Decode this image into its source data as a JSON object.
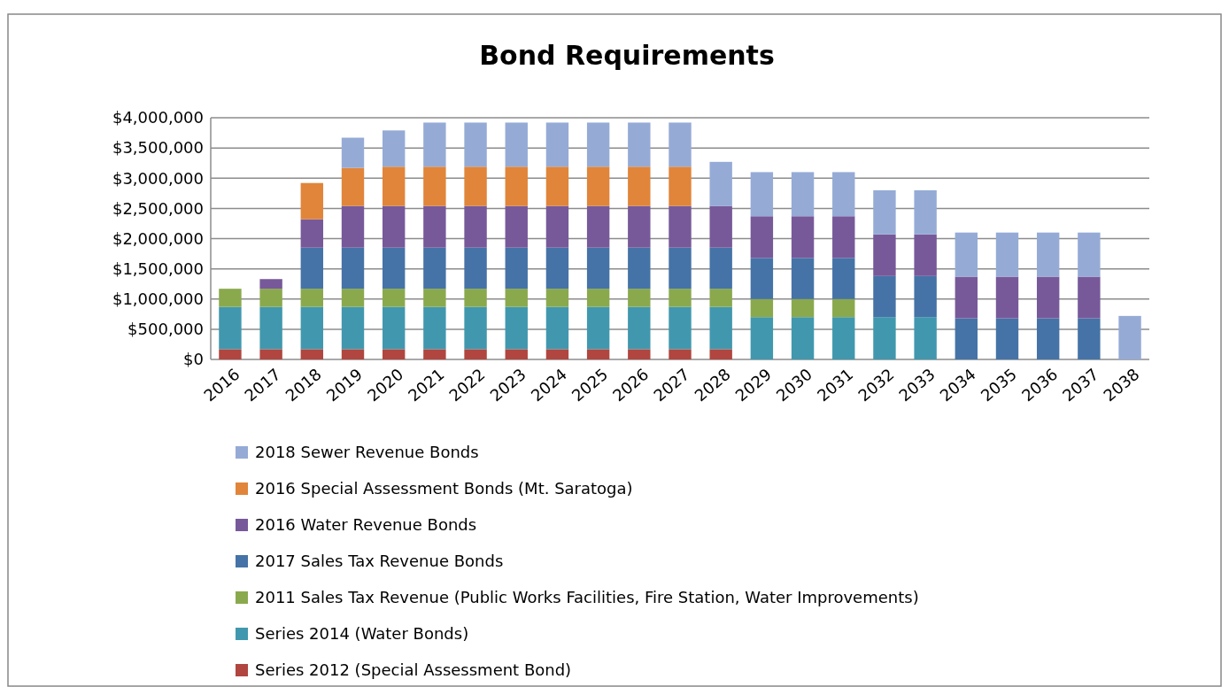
{
  "chart_data": {
    "type": "bar",
    "title": "Bond Requirements",
    "stacked": true,
    "grid": "y",
    "legend": "bottom",
    "categories": [
      "2016",
      "2017",
      "2018",
      "2019",
      "2020",
      "2021",
      "2022",
      "2023",
      "2024",
      "2025",
      "2026",
      "2027",
      "2028",
      "2029",
      "2030",
      "2031",
      "2032",
      "2033",
      "2034",
      "2035",
      "2036",
      "2037",
      "2038"
    ],
    "ylim": [
      0,
      4000000
    ],
    "yticks": [
      {
        "value": 0,
        "label": "$0"
      },
      {
        "value": 500000,
        "label": "$500,000"
      },
      {
        "value": 1000000,
        "label": "$1,000,000"
      },
      {
        "value": 1500000,
        "label": "$1,500,000"
      },
      {
        "value": 2000000,
        "label": "$2,000,000"
      },
      {
        "value": 2500000,
        "label": "$2,500,000"
      },
      {
        "value": 3000000,
        "label": "$3,000,000"
      },
      {
        "value": 3500000,
        "label": "$3,500,000"
      },
      {
        "value": 4000000,
        "label": "$4,000,000"
      }
    ],
    "series": [
      {
        "name": "Series 2012 (Special Assessment Bond)",
        "color": "#b0463f",
        "values": [
          170000,
          170000,
          170000,
          170000,
          170000,
          170000,
          170000,
          170000,
          170000,
          170000,
          170000,
          170000,
          170000,
          null,
          null,
          null,
          null,
          null,
          null,
          null,
          null,
          null,
          null
        ]
      },
      {
        "name": "Series 2014 (Water Bonds)",
        "color": "#4198ae",
        "values": [
          700000,
          700000,
          700000,
          700000,
          700000,
          700000,
          700000,
          700000,
          700000,
          700000,
          700000,
          700000,
          700000,
          700000,
          700000,
          700000,
          700000,
          700000,
          null,
          null,
          null,
          null,
          null
        ]
      },
      {
        "name": "2011 Sales Tax Revenue (Public Works Facilities, Fire Station, Water Improvements)",
        "color": "#8aa94d",
        "values": [
          300000,
          300000,
          300000,
          300000,
          300000,
          300000,
          300000,
          300000,
          300000,
          300000,
          300000,
          300000,
          300000,
          300000,
          300000,
          300000,
          null,
          null,
          null,
          null,
          null,
          null,
          null
        ]
      },
      {
        "name": "2017 Sales Tax Revenue Bonds",
        "color": "#4573a7",
        "values": [
          null,
          null,
          680000,
          680000,
          680000,
          680000,
          680000,
          680000,
          680000,
          680000,
          680000,
          680000,
          680000,
          680000,
          680000,
          680000,
          680000,
          680000,
          680000,
          680000,
          680000,
          680000,
          null
        ]
      },
      {
        "name": "2016 Water Revenue Bonds",
        "color": "#77599a",
        "values": [
          null,
          160000,
          470000,
          690000,
          690000,
          690000,
          690000,
          690000,
          690000,
          690000,
          690000,
          690000,
          690000,
          690000,
          690000,
          690000,
          690000,
          690000,
          690000,
          690000,
          690000,
          690000,
          null
        ]
      },
      {
        "name": "2016 Special Assessment Bonds (Mt. Saratoga)",
        "color": "#e0853a",
        "values": [
          null,
          null,
          600000,
          630000,
          650000,
          650000,
          650000,
          650000,
          650000,
          650000,
          650000,
          650000,
          null,
          null,
          null,
          null,
          null,
          null,
          null,
          null,
          null,
          null,
          null
        ]
      },
      {
        "name": "2018 Sewer Revenue Bonds",
        "color": "#95abd6",
        "values": [
          null,
          null,
          null,
          500000,
          600000,
          730000,
          730000,
          730000,
          730000,
          730000,
          730000,
          730000,
          730000,
          730000,
          730000,
          730000,
          730000,
          730000,
          730000,
          730000,
          730000,
          730000,
          720000
        ]
      }
    ]
  }
}
